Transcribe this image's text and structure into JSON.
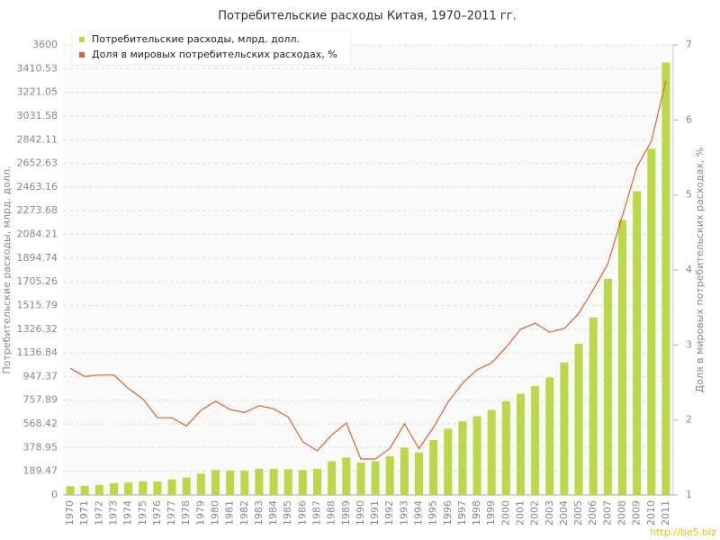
{
  "chart_data": {
    "type": "bar_line",
    "title": "Потребительские расходы Китая, 1970–2011 гг.",
    "y_label": "Потребительские расходы, млрд. долл.",
    "y2_label": "Доля в мировых потребительских расходах, %",
    "watermark": "http://be5.biz",
    "categories": [
      "1970",
      "1971",
      "1972",
      "1973",
      "1974",
      "1975",
      "1976",
      "1977",
      "1978",
      "1979",
      "1980",
      "1981",
      "1982",
      "1983",
      "1984",
      "1985",
      "1986",
      "1987",
      "1988",
      "1989",
      "1990",
      "1991",
      "1992",
      "1993",
      "1994",
      "1995",
      "1996",
      "1997",
      "1998",
      "1999",
      "2000",
      "2001",
      "2002",
      "2003",
      "2004",
      "2005",
      "2006",
      "2007",
      "2008",
      "2009",
      "2010",
      "2011"
    ],
    "series": [
      {
        "name": "Потребительские расходы, млрд. долл.",
        "color": "#bcd84a",
        "type": "bar",
        "values": [
          70,
          73,
          80,
          95,
          100,
          110,
          108,
          125,
          140,
          170,
          200,
          195,
          195,
          210,
          210,
          205,
          200,
          210,
          270,
          300,
          260,
          270,
          310,
          380,
          340,
          440,
          530,
          590,
          630,
          680,
          750,
          810,
          870,
          940,
          1060,
          1210,
          1420,
          1730,
          2200,
          2430,
          2770,
          3460
        ]
      },
      {
        "name": "Доля в мировых потребительских расходах, %",
        "color": "#e0622d",
        "type": "line",
        "axis": "y2",
        "values": [
          2.69,
          2.58,
          2.6,
          2.6,
          2.42,
          2.28,
          2.03,
          2.03,
          1.92,
          2.13,
          2.25,
          2.14,
          2.1,
          2.19,
          2.15,
          2.04,
          1.71,
          1.59,
          1.8,
          1.96,
          1.48,
          1.48,
          1.62,
          1.95,
          1.62,
          1.9,
          2.24,
          2.49,
          2.67,
          2.76,
          2.97,
          3.21,
          3.29,
          3.17,
          3.22,
          3.42,
          3.74,
          4.08,
          4.72,
          5.37,
          5.72,
          6.52
        ]
      }
    ],
    "ylim": [
      0,
      3600
    ],
    "yticks": [
      0,
      189.47,
      378.95,
      568.42,
      757.89,
      947.37,
      1136.84,
      1326.32,
      1515.79,
      1705.26,
      1894.74,
      2084.21,
      2273.68,
      2463.16,
      2652.63,
      2842.11,
      3031.58,
      3221.05,
      3410.53,
      3600
    ],
    "y2lim": [
      1,
      7
    ],
    "y2ticks": [
      1,
      2,
      3,
      4,
      5,
      6,
      7
    ],
    "grid": true
  }
}
